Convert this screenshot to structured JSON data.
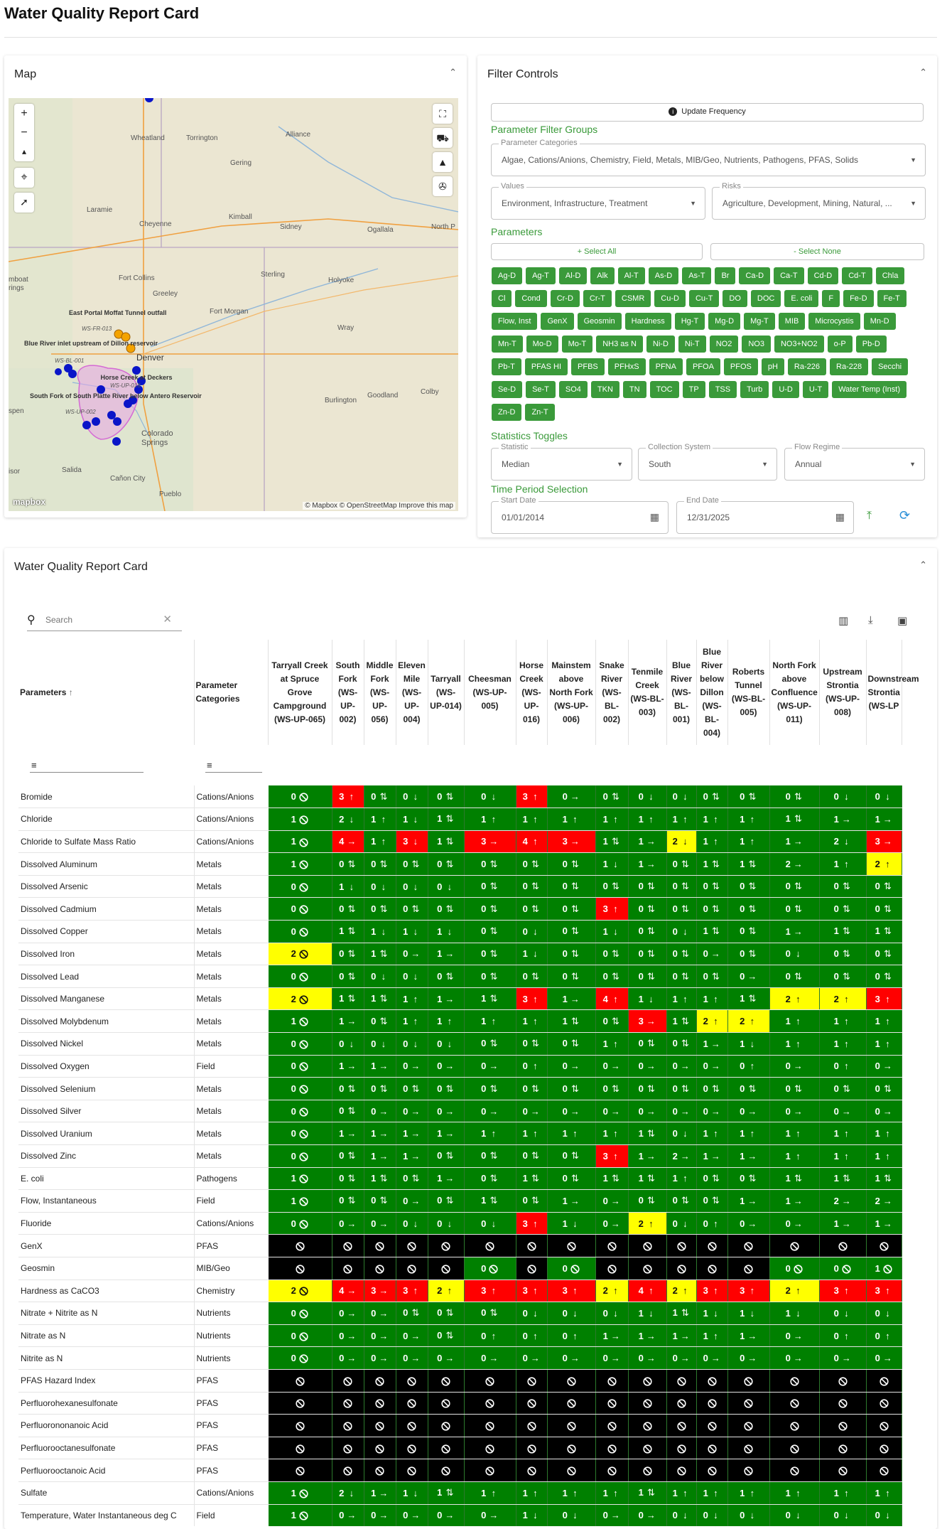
{
  "page_title": "Water Quality Report Card",
  "map_panel": {
    "title": "Map",
    "labels": [
      "Alliance",
      "Wheatland",
      "Torrington",
      "Gering",
      "Laramie",
      "Cheyenne",
      "Kimball",
      "Sidney",
      "Ogallala",
      "North P",
      "Fort Collins",
      "Greeley",
      "Sterling",
      "Holyoke",
      "Fort Morgan",
      "Wray",
      "Denver",
      "Burlington",
      "Goodland",
      "Colby",
      "Colorado",
      "Springs",
      "Salida",
      "Cañon City",
      "Pueblo",
      "isor",
      "spen",
      "rings",
      "mboat"
    ],
    "station_labels": [
      "East Portal Moffat Tunnel outfall",
      "Blue River inlet upstream of Dillon reservoir",
      "WS-FR-013",
      "WS-BL-001",
      "Horse Creek at Deckers",
      "WS-UP-016",
      "South Fork of South Platte River below Antero Reservoir",
      "WS-UP-002"
    ],
    "attribution": "© Mapbox © OpenStreetMap  Improve this map",
    "logo": "mapbox"
  },
  "filter_panel": {
    "title": "Filter Controls",
    "update_btn": "Update Frequency",
    "groups_label": "Parameter Filter Groups",
    "param_cat_label": "Parameter Categories",
    "param_cat_value": "Algae, Cations/Anions, Chemistry, Field, Metals, MIB/Geo, Nutrients, Pathogens, PFAS, Solids",
    "values_label": "Values",
    "values_value": "Environment, Infrastructure, Treatment",
    "risks_label": "Risks",
    "risks_value": "Agriculture, Development, Mining, Natural, ...",
    "parameters_label": "Parameters",
    "select_all": "+ Select All",
    "select_none": "- Select None",
    "chips": [
      "Ag-D",
      "Ag-T",
      "Al-D",
      "Alk",
      "Al-T",
      "As-D",
      "As-T",
      "Br",
      "Ca-D",
      "Ca-T",
      "Cd-D",
      "Cd-T",
      "Chla",
      "Cl",
      "Cond",
      "Cr-D",
      "Cr-T",
      "CSMR",
      "Cu-D",
      "Cu-T",
      "DO",
      "DOC",
      "E. coli",
      "F",
      "Fe-D",
      "Fe-T",
      "Flow, Inst",
      "GenX",
      "Geosmin",
      "Hardness",
      "Hg-T",
      "Mg-D",
      "Mg-T",
      "MIB",
      "Microcystis",
      "Mn-D",
      "Mn-T",
      "Mo-D",
      "Mo-T",
      "NH3 as N",
      "Ni-D",
      "Ni-T",
      "NO2",
      "NO3",
      "NO3+NO2",
      "o-P",
      "Pb-D",
      "Pb-T",
      "PFAS HI",
      "PFBS",
      "PFHxS",
      "PFNA",
      "PFOA",
      "PFOS",
      "pH",
      "Ra-226",
      "Ra-228",
      "Secchi",
      "Se-D",
      "Se-T",
      "SO4",
      "TKN",
      "TN",
      "TOC",
      "TP",
      "TSS",
      "Turb",
      "U-D",
      "U-T",
      "Water Temp (Inst)",
      "Zn-D",
      "Zn-T"
    ],
    "stats_label": "Statistics Toggles",
    "statistic_label": "Statistic",
    "statistic_value": "Median",
    "collection_label": "Collection System",
    "collection_value": "South",
    "flow_label": "Flow Regime",
    "flow_value": "Annual",
    "time_label": "Time Period Selection",
    "start_label": "Start Date",
    "start_value": "01/01/2014",
    "end_label": "End Date",
    "end_value": "12/31/2025"
  },
  "report_panel": {
    "title": "Water Quality Report Card",
    "search_placeholder": "Search"
  },
  "table": {
    "col_param": "Parameters",
    "col_cat": "Parameter Categories",
    "stations": [
      "Tarryall Creek at Spruce Grove Campground (WS-UP-065)",
      "South Fork (WS-UP-002)",
      "Middle Fork (WS-UP-056)",
      "Eleven Mile (WS-UP-004)",
      "Tarryall (WS-UP-014)",
      "Cheesman (WS-UP-005)",
      "Horse Creek (WS-UP-016)",
      "Mainstem above North Fork (WS-UP-006)",
      "Snake River (WS-BL-002)",
      "Tenmile Creek (WS-BL-003)",
      "Blue River (WS-BL-001)",
      "Blue River below Dillon (WS-BL-004)",
      "Roberts Tunnel (WS-BL-005)",
      "North Fork above Confluence (WS-UP-011)",
      "Upstream Strontia (WS-UP-008)",
      "Downstream Strontia (WS-LP"
    ],
    "rows": [
      {
        "p": "Bromide",
        "c": "Cations/Anions",
        "v": [
          "g0n",
          "r3u",
          "g0b",
          "g0d",
          "g0b",
          "g0d",
          "r3u",
          "g0a",
          "g0b",
          "g0d",
          "g0d",
          "g0b",
          "g0b",
          "g0b",
          "g0d",
          "g0d"
        ]
      },
      {
        "p": "Chloride",
        "c": "Cations/Anions",
        "v": [
          "g1n",
          "g2d",
          "g1u",
          "g1d",
          "g1b",
          "g1u",
          "g1u",
          "g1u",
          "g1u",
          "g1u",
          "g1u",
          "g1u",
          "g1u",
          "g1b",
          "g1a",
          "g1a"
        ]
      },
      {
        "p": "Chloride to Sulfate Mass Ratio",
        "c": "Cations/Anions",
        "v": [
          "g1n",
          "r4a",
          "g1u",
          "r3d",
          "g1b",
          "r3a",
          "r4u",
          "r3a",
          "g1b",
          "g1a",
          "y2d",
          "g1u",
          "g1u",
          "g1a",
          "g2d",
          "r3a"
        ]
      },
      {
        "p": "Dissolved Aluminum",
        "c": "Metals",
        "v": [
          "g1n",
          "g0b",
          "g0b",
          "g0b",
          "g0b",
          "g0b",
          "g0b",
          "g0b",
          "g1d",
          "g1a",
          "g0b",
          "g1b",
          "g1b",
          "g2a",
          "g1u",
          "y2u"
        ]
      },
      {
        "p": "Dissolved Arsenic",
        "c": "Metals",
        "v": [
          "g0n",
          "g1d",
          "g0d",
          "g0d",
          "g0d",
          "g0b",
          "g0b",
          "g0b",
          "g0b",
          "g0b",
          "g0b",
          "g0b",
          "g0b",
          "g0b",
          "g0b",
          "g0b"
        ]
      },
      {
        "p": "Dissolved Cadmium",
        "c": "Metals",
        "v": [
          "g0n",
          "g0b",
          "g0b",
          "g0b",
          "g0b",
          "g0b",
          "g0b",
          "g0b",
          "r3u",
          "g0b",
          "g0b",
          "g0b",
          "g0b",
          "g0b",
          "g0b",
          "g0b"
        ]
      },
      {
        "p": "Dissolved Copper",
        "c": "Metals",
        "v": [
          "g0n",
          "g1b",
          "g1d",
          "g1d",
          "g1d",
          "g0b",
          "g0d",
          "g0b",
          "g1d",
          "g0b",
          "g0d",
          "g1b",
          "g0b",
          "g1a",
          "g1b",
          "g1b"
        ]
      },
      {
        "p": "Dissolved Iron",
        "c": "Metals",
        "v": [
          "y2n",
          "g0b",
          "g1b",
          "g0a",
          "g1a",
          "g0b",
          "g1d",
          "g0b",
          "g0b",
          "g0b",
          "g0b",
          "g0a",
          "g0b",
          "g0d",
          "g0b",
          "g0b"
        ]
      },
      {
        "p": "Dissolved Lead",
        "c": "Metals",
        "v": [
          "g0n",
          "g0b",
          "g0d",
          "g0d",
          "g0b",
          "g0b",
          "g0b",
          "g0b",
          "g0b",
          "g0b",
          "g0b",
          "g0b",
          "g0a",
          "g0b",
          "g0b",
          "g0b"
        ]
      },
      {
        "p": "Dissolved Manganese",
        "c": "Metals",
        "v": [
          "y2n",
          "g1b",
          "g1b",
          "g1u",
          "g1a",
          "g1b",
          "r3u",
          "g1a",
          "r4u",
          "g1d",
          "g1u",
          "g1u",
          "g1b",
          "y2u",
          "y2u",
          "r3u"
        ]
      },
      {
        "p": "Dissolved Molybdenum",
        "c": "Metals",
        "v": [
          "g1n",
          "g1a",
          "g0b",
          "g1u",
          "g1u",
          "g1u",
          "g1u",
          "g1b",
          "g0b",
          "r3a",
          "g1b",
          "y2u",
          "y2u",
          "g1u",
          "g1u",
          "g1u"
        ]
      },
      {
        "p": "Dissolved Nickel",
        "c": "Metals",
        "v": [
          "g0n",
          "g0d",
          "g0d",
          "g0d",
          "g0d",
          "g0b",
          "g0b",
          "g0b",
          "g1u",
          "g0b",
          "g0b",
          "g1a",
          "g1d",
          "g1u",
          "g1u",
          "g1u"
        ]
      },
      {
        "p": "Dissolved Oxygen",
        "c": "Field",
        "v": [
          "g0n",
          "g1a",
          "g1a",
          "g0a",
          "g0a",
          "g0a",
          "g0u",
          "g0a",
          "g0a",
          "g0a",
          "g0a",
          "g0a",
          "g0u",
          "g0a",
          "g0u",
          "g0a"
        ]
      },
      {
        "p": "Dissolved Selenium",
        "c": "Metals",
        "v": [
          "g0n",
          "g0b",
          "g0b",
          "g0b",
          "g0b",
          "g0b",
          "g0b",
          "g0b",
          "g0b",
          "g0b",
          "g0b",
          "g0b",
          "g0b",
          "g0b",
          "g0b",
          "g0b"
        ]
      },
      {
        "p": "Dissolved Silver",
        "c": "Metals",
        "v": [
          "g0n",
          "g0b",
          "g0a",
          "g0a",
          "g0a",
          "g0a",
          "g0a",
          "g0a",
          "g0a",
          "g0a",
          "g0a",
          "g0a",
          "g0a",
          "g0a",
          "g0a",
          "g0a"
        ]
      },
      {
        "p": "Dissolved Uranium",
        "c": "Metals",
        "v": [
          "g0n",
          "g1a",
          "g1a",
          "g1a",
          "g1a",
          "g1u",
          "g1u",
          "g1u",
          "g1u",
          "g1b",
          "g0d",
          "g1u",
          "g1u",
          "g1u",
          "g1u",
          "g1u"
        ]
      },
      {
        "p": "Dissolved Zinc",
        "c": "Metals",
        "v": [
          "g0n",
          "g0b",
          "g1a",
          "g1a",
          "g0b",
          "g0b",
          "g0b",
          "g0b",
          "r3u",
          "g1a",
          "g2a",
          "g1a",
          "g1a",
          "g1u",
          "g1u",
          "g1u"
        ]
      },
      {
        "p": "E. coli",
        "c": "Pathogens",
        "v": [
          "g1n",
          "g0b",
          "g1b",
          "g0b",
          "g1a",
          "g0b",
          "g1b",
          "g0b",
          "g1b",
          "g1b",
          "g1u",
          "g0b",
          "g0b",
          "g1b",
          "g1b",
          "g1b"
        ]
      },
      {
        "p": "Flow, Instantaneous",
        "c": "Field",
        "v": [
          "g1n",
          "g0b",
          "g0b",
          "g0a",
          "g0b",
          "g1b",
          "g0b",
          "g1a",
          "g0a",
          "g0b",
          "g0b",
          "g0b",
          "g1a",
          "g1a",
          "g2a",
          "g2a"
        ]
      },
      {
        "p": "Fluoride",
        "c": "Cations/Anions",
        "v": [
          "g0n",
          "g0a",
          "g0a",
          "g0d",
          "g0d",
          "g0d",
          "r3u",
          "g1d",
          "g0a",
          "y2u",
          "g0d",
          "g0u",
          "g0a",
          "g0a",
          "g1a",
          "g1a"
        ]
      },
      {
        "p": "GenX",
        "c": "PFAS",
        "v": [
          "kn",
          "kn",
          "kn",
          "kn",
          "kn",
          "kn",
          "kn",
          "kn",
          "kn",
          "kn",
          "kn",
          "kn",
          "kn",
          "kn",
          "kn",
          "kn"
        ]
      },
      {
        "p": "Geosmin",
        "c": "MIB/Geo",
        "v": [
          "kn",
          "kn",
          "kn",
          "kn",
          "kn",
          "g0n",
          "kn",
          "g0n",
          "kn",
          "kn",
          "kn",
          "kn",
          "kn",
          "g0n",
          "g0n",
          "g1n"
        ]
      },
      {
        "p": "Hardness as CaCO3",
        "c": "Chemistry",
        "v": [
          "y2n",
          "r4a",
          "r3a",
          "r3u",
          "y2u",
          "r3u",
          "r3u",
          "r3u",
          "y2u",
          "r4u",
          "y2u",
          "r3u",
          "r3u",
          "y2u",
          "r3u",
          "r3u"
        ]
      },
      {
        "p": "Nitrate + Nitrite as N",
        "c": "Nutrients",
        "v": [
          "g0n",
          "g0a",
          "g0a",
          "g0b",
          "g0b",
          "g0b",
          "g0d",
          "g0d",
          "g0d",
          "g1d",
          "g1b",
          "g1d",
          "g1d",
          "g1d",
          "g0d",
          "g0d"
        ]
      },
      {
        "p": "Nitrate as N",
        "c": "Nutrients",
        "v": [
          "g0n",
          "g0a",
          "g0a",
          "g0a",
          "g0b",
          "g0u",
          "g0u",
          "g0u",
          "g1a",
          "g1a",
          "g1a",
          "g1u",
          "g1a",
          "g0a",
          "g0u",
          "g0u"
        ]
      },
      {
        "p": "Nitrite as N",
        "c": "Nutrients",
        "v": [
          "g0n",
          "g0a",
          "g0a",
          "g0a",
          "g0a",
          "g0a",
          "g0a",
          "g0a",
          "g0a",
          "g0a",
          "g0a",
          "g0a",
          "g0a",
          "g0a",
          "g0a",
          "g0a"
        ]
      },
      {
        "p": "PFAS Hazard Index",
        "c": "PFAS",
        "v": [
          "kn",
          "kn",
          "kn",
          "kn",
          "kn",
          "kn",
          "kn",
          "kn",
          "kn",
          "kn",
          "kn",
          "kn",
          "kn",
          "kn",
          "kn",
          "kn"
        ]
      },
      {
        "p": "Perfluorohexanesulfonate",
        "c": "PFAS",
        "v": [
          "kn",
          "kn",
          "kn",
          "kn",
          "kn",
          "kn",
          "kn",
          "kn",
          "kn",
          "kn",
          "kn",
          "kn",
          "kn",
          "kn",
          "kn",
          "kn"
        ]
      },
      {
        "p": "Perfluorononanoic Acid",
        "c": "PFAS",
        "v": [
          "kn",
          "kn",
          "kn",
          "kn",
          "kn",
          "kn",
          "kn",
          "kn",
          "kn",
          "kn",
          "kn",
          "kn",
          "kn",
          "kn",
          "kn",
          "kn"
        ]
      },
      {
        "p": "Perfluorooctanesulfonate",
        "c": "PFAS",
        "v": [
          "kn",
          "kn",
          "kn",
          "kn",
          "kn",
          "kn",
          "kn",
          "kn",
          "kn",
          "kn",
          "kn",
          "kn",
          "kn",
          "kn",
          "kn",
          "kn"
        ]
      },
      {
        "p": "Perfluorooctanoic Acid",
        "c": "PFAS",
        "v": [
          "kn",
          "kn",
          "kn",
          "kn",
          "kn",
          "kn",
          "kn",
          "kn",
          "kn",
          "kn",
          "kn",
          "kn",
          "kn",
          "kn",
          "kn",
          "kn"
        ]
      },
      {
        "p": "Sulfate",
        "c": "Cations/Anions",
        "v": [
          "g1n",
          "g2d",
          "g1a",
          "g1d",
          "g1b",
          "g1u",
          "g1u",
          "g1u",
          "g1u",
          "g1b",
          "g1u",
          "g1u",
          "g1u",
          "g1u",
          "g1u",
          "g1u"
        ]
      },
      {
        "p": "Temperature, Water Instantaneous deg C",
        "c": "Field",
        "v": [
          "g1n",
          "g0a",
          "g0a",
          "g0a",
          "g0a",
          "g0a",
          "g1d",
          "g0d",
          "g0a",
          "g0a",
          "g0d",
          "g0d",
          "g0d",
          "g0d",
          "g0d",
          "g0d"
        ]
      }
    ]
  }
}
